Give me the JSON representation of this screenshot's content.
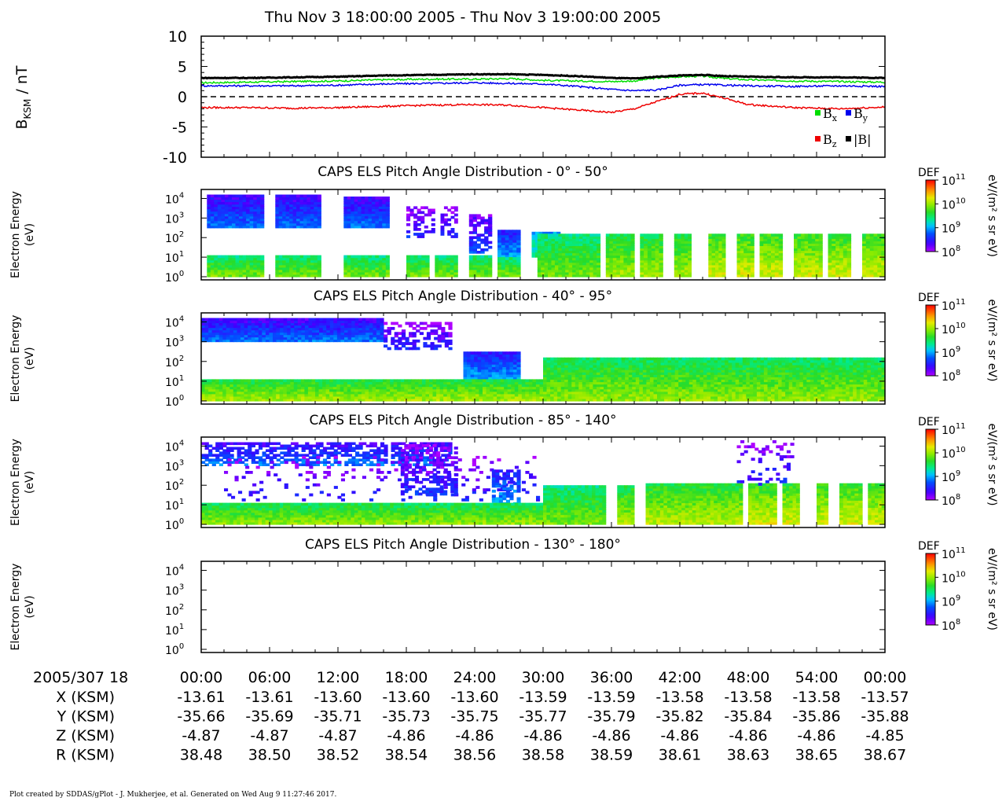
{
  "title": "Thu Nov 3 18:00:00 2005 - Thu Nov 3 19:00:00 2005",
  "footer": "Plot created by SDDAS/gPlot - J. Mukherjee, et al.  Generated on Wed Aug 9 11:27:46 2017.",
  "chart_data": [
    {
      "type": "line",
      "ylabel_main": "B",
      "ylabel_sub": "KSM",
      "ylabel_unit": " / nT",
      "ylim": [
        -10,
        10
      ],
      "yticks": [
        10,
        5,
        0,
        -5,
        -10
      ],
      "zero_line": "dashed",
      "x_minutes": [
        0,
        4,
        8,
        12,
        16,
        20,
        24,
        27,
        30,
        33,
        36,
        38,
        40,
        42,
        44,
        46,
        48,
        52,
        56,
        60
      ],
      "series": [
        {
          "name": "Bx",
          "color": "#00dd00",
          "values": [
            2.3,
            2.4,
            2.5,
            2.6,
            2.8,
            2.9,
            2.9,
            3.0,
            2.7,
            2.6,
            2.5,
            2.6,
            3.1,
            3.3,
            3.4,
            3.0,
            2.8,
            2.6,
            2.5,
            2.4
          ]
        },
        {
          "name": "By",
          "color": "#0000ee",
          "values": [
            1.8,
            1.8,
            1.8,
            1.9,
            2.1,
            2.2,
            2.3,
            2.2,
            2.1,
            1.7,
            1.2,
            1.0,
            1.1,
            1.9,
            2.0,
            1.9,
            1.8,
            1.7,
            1.8,
            1.7
          ]
        },
        {
          "name": "Bz",
          "color": "#ee0000",
          "values": [
            -1.8,
            -1.8,
            -1.9,
            -1.8,
            -1.6,
            -1.4,
            -1.3,
            -1.4,
            -1.8,
            -2.2,
            -2.6,
            -2.0,
            -0.8,
            0.4,
            0.6,
            -0.3,
            -1.3,
            -1.8,
            -2.0,
            -1.7
          ]
        },
        {
          "name": "|B|",
          "color": "#000000",
          "values": [
            3.1,
            3.1,
            3.2,
            3.3,
            3.5,
            3.6,
            3.7,
            3.7,
            3.6,
            3.4,
            3.1,
            3.0,
            3.3,
            3.5,
            3.6,
            3.4,
            3.3,
            3.2,
            3.2,
            3.1
          ]
        }
      ],
      "legend": [
        {
          "color": "#00dd00",
          "label": "B",
          "sub": "x"
        },
        {
          "color": "#0000ee",
          "label": "B",
          "sub": "y"
        },
        {
          "color": "#ee0000",
          "label": "B",
          "sub": "z"
        },
        {
          "color": "#000000",
          "label": "|B|",
          "sub": ""
        }
      ]
    },
    {
      "type": "heatmap",
      "title": "CAPS ELS Pitch Angle Distribution - 0° - 50°",
      "ylabel": "Electron Energy",
      "yunit": "(eV)",
      "yticks": [
        "10",
        "10",
        "10",
        "10",
        "10"
      ],
      "ytick_exponents": [
        "4",
        "3",
        "2",
        "1",
        "0"
      ],
      "colorbar": {
        "label": "DEF",
        "unit": "eV/(m² s sr eV)",
        "ticks_base": "10",
        "ticks_exp": [
          "11",
          "10",
          "9",
          "8"
        ]
      },
      "blocks": [
        {
          "t0": 0.5,
          "t1": 5.5,
          "e_lo": 2.5,
          "e_hi": 4.2,
          "lvl": 0.1
        },
        {
          "t0": 6.5,
          "t1": 10.5,
          "e_lo": 2.5,
          "e_hi": 4.2,
          "lvl": 0.1
        },
        {
          "t0": 12.5,
          "t1": 16.5,
          "e_lo": 2.5,
          "e_hi": 4.1,
          "lvl": 0.1
        },
        {
          "t0": 18.0,
          "t1": 20.5,
          "e_lo": 2.0,
          "e_hi": 3.6,
          "lvl": 0.0,
          "sparse": 0.5
        },
        {
          "t0": 21.0,
          "t1": 22.5,
          "e_lo": 2.0,
          "e_hi": 3.6,
          "lvl": 0.0,
          "sparse": 0.5
        },
        {
          "t0": 23.5,
          "t1": 25.5,
          "e_lo": 1.2,
          "e_hi": 3.2,
          "lvl": 0.05,
          "sparse": 0.7
        },
        {
          "t0": 26.0,
          "t1": 28.0,
          "e_lo": 1.0,
          "e_hi": 2.4,
          "lvl": 0.15
        },
        {
          "t0": 29.0,
          "t1": 31.5,
          "e_lo": 1.0,
          "e_hi": 2.3,
          "lvl": 0.3
        },
        {
          "t0": 0.5,
          "t1": 5.5,
          "e_lo": 0.0,
          "e_hi": 1.1,
          "lvl": 0.45
        },
        {
          "t0": 6.5,
          "t1": 10.5,
          "e_lo": 0.0,
          "e_hi": 1.1,
          "lvl": 0.45
        },
        {
          "t0": 12.5,
          "t1": 16.5,
          "e_lo": 0.0,
          "e_hi": 1.1,
          "lvl": 0.45
        },
        {
          "t0": 18.0,
          "t1": 20.0,
          "e_lo": 0.0,
          "e_hi": 1.1,
          "lvl": 0.45
        },
        {
          "t0": 20.5,
          "t1": 22.5,
          "e_lo": 0.0,
          "e_hi": 1.1,
          "lvl": 0.45
        },
        {
          "t0": 23.5,
          "t1": 25.5,
          "e_lo": 0.0,
          "e_hi": 1.1,
          "lvl": 0.45
        },
        {
          "t0": 26.0,
          "t1": 28.0,
          "e_lo": 0.0,
          "e_hi": 1.0,
          "lvl": 0.45
        },
        {
          "t0": 29.5,
          "t1": 35.0,
          "e_lo": 0.0,
          "e_hi": 2.2,
          "lvl": 0.45
        },
        {
          "t0": 35.5,
          "t1": 38.0,
          "e_lo": 0.0,
          "e_hi": 2.2,
          "lvl": 0.5
        },
        {
          "t0": 38.5,
          "t1": 40.5,
          "e_lo": 0.0,
          "e_hi": 2.2,
          "lvl": 0.5
        },
        {
          "t0": 41.5,
          "t1": 43.0,
          "e_lo": 0.0,
          "e_hi": 2.2,
          "lvl": 0.5
        },
        {
          "t0": 44.5,
          "t1": 46.0,
          "e_lo": 0.0,
          "e_hi": 2.2,
          "lvl": 0.55
        },
        {
          "t0": 47.0,
          "t1": 48.5,
          "e_lo": 0.0,
          "e_hi": 2.2,
          "lvl": 0.55
        },
        {
          "t0": 49.0,
          "t1": 51.0,
          "e_lo": 0.0,
          "e_hi": 2.2,
          "lvl": 0.55
        },
        {
          "t0": 52.0,
          "t1": 54.5,
          "e_lo": 0.0,
          "e_hi": 2.2,
          "lvl": 0.55
        },
        {
          "t0": 55.0,
          "t1": 57.0,
          "e_lo": 0.0,
          "e_hi": 2.2,
          "lvl": 0.55
        },
        {
          "t0": 58.0,
          "t1": 60.0,
          "e_lo": 0.0,
          "e_hi": 2.2,
          "lvl": 0.55
        }
      ]
    },
    {
      "type": "heatmap",
      "title": "CAPS ELS Pitch Angle Distribution - 40° - 95°",
      "ylabel": "Electron Energy",
      "yunit": "(eV)",
      "yticks": [
        "10",
        "10",
        "10",
        "10",
        "10"
      ],
      "ytick_exponents": [
        "4",
        "3",
        "2",
        "1",
        "0"
      ],
      "colorbar": {
        "label": "DEF",
        "unit": "eV/(m² s sr eV)",
        "ticks_base": "10",
        "ticks_exp": [
          "11",
          "10",
          "9",
          "8"
        ]
      },
      "blocks": [
        {
          "t0": 0.0,
          "t1": 16.0,
          "e_lo": 3.0,
          "e_hi": 4.2,
          "lvl": 0.1
        },
        {
          "t0": 16.0,
          "t1": 22.0,
          "e_lo": 2.6,
          "e_hi": 4.0,
          "lvl": 0.0,
          "sparse": 0.55
        },
        {
          "t0": 23.0,
          "t1": 28.0,
          "e_lo": 1.1,
          "e_hi": 2.5,
          "lvl": 0.15
        },
        {
          "t0": 0.0,
          "t1": 30.0,
          "e_lo": 0.0,
          "e_hi": 1.1,
          "lvl": 0.5
        },
        {
          "t0": 30.0,
          "t1": 60.0,
          "e_lo": 0.0,
          "e_hi": 2.2,
          "lvl": 0.48
        }
      ]
    },
    {
      "type": "heatmap",
      "title": "CAPS ELS Pitch Angle Distribution - 85° - 140°",
      "ylabel": "Electron Energy",
      "yunit": "(eV)",
      "yticks": [
        "10",
        "10",
        "10",
        "10",
        "10"
      ],
      "ytick_exponents": [
        "4",
        "3",
        "2",
        "1",
        "0"
      ],
      "colorbar": {
        "label": "DEF",
        "unit": "eV/(m² s sr eV)",
        "ticks_base": "10",
        "ticks_exp": [
          "11",
          "10",
          "9",
          "8"
        ]
      },
      "blocks": [
        {
          "t0": 0.0,
          "t1": 22.0,
          "e_lo": 3.0,
          "e_hi": 4.2,
          "lvl": 0.1,
          "sparse": 0.65
        },
        {
          "t0": 2.0,
          "t1": 30.0,
          "e_lo": 1.2,
          "e_hi": 3.5,
          "lvl": 0.0,
          "sparse": 0.12
        },
        {
          "t0": 17.5,
          "t1": 22.5,
          "e_lo": 1.5,
          "e_hi": 4.1,
          "lvl": 0.02,
          "sparse": 0.45
        },
        {
          "t0": 25.5,
          "t1": 28.0,
          "e_lo": 1.0,
          "e_hi": 2.8,
          "lvl": 0.15,
          "sparse": 0.6
        },
        {
          "t0": 0.0,
          "t1": 30.0,
          "e_lo": 0.0,
          "e_hi": 1.1,
          "lvl": 0.48
        },
        {
          "t0": 30.0,
          "t1": 35.5,
          "e_lo": 0.0,
          "e_hi": 2.0,
          "lvl": 0.45
        },
        {
          "t0": 36.5,
          "t1": 38.0,
          "e_lo": 0.0,
          "e_hi": 2.0,
          "lvl": 0.5
        },
        {
          "t0": 39.0,
          "t1": 47.5,
          "e_lo": 0.0,
          "e_hi": 2.1,
          "lvl": 0.52
        },
        {
          "t0": 48.0,
          "t1": 50.5,
          "e_lo": 0.0,
          "e_hi": 2.1,
          "lvl": 0.55
        },
        {
          "t0": 51.0,
          "t1": 52.5,
          "e_lo": 0.0,
          "e_hi": 2.1,
          "lvl": 0.55
        },
        {
          "t0": 54.0,
          "t1": 55.0,
          "e_lo": 0.0,
          "e_hi": 2.1,
          "lvl": 0.55
        },
        {
          "t0": 56.0,
          "t1": 58.0,
          "e_lo": 0.0,
          "e_hi": 2.1,
          "lvl": 0.55
        },
        {
          "t0": 58.5,
          "t1": 60.0,
          "e_lo": 0.0,
          "e_hi": 2.1,
          "lvl": 0.55
        },
        {
          "t0": 47.0,
          "t1": 52.0,
          "e_lo": 2.0,
          "e_hi": 4.3,
          "lvl": 0.0,
          "sparse": 0.18
        }
      ]
    },
    {
      "type": "heatmap",
      "title": "CAPS ELS Pitch Angle Distribution - 130° - 180°",
      "ylabel": "Electron Energy",
      "yunit": "(eV)",
      "yticks": [
        "10",
        "10",
        "10",
        "10",
        "10"
      ],
      "ytick_exponents": [
        "4",
        "3",
        "2",
        "1",
        "0"
      ],
      "colorbar": {
        "label": "DEF",
        "unit": "eV/(m² s sr eV)",
        "ticks_base": "10",
        "ticks_exp": [
          "11",
          "10",
          "9",
          "8"
        ]
      },
      "blocks": []
    }
  ],
  "time_axis": {
    "label": "2005/307 18",
    "ticks": [
      "00:00",
      "06:00",
      "12:00",
      "18:00",
      "24:00",
      "30:00",
      "36:00",
      "42:00",
      "48:00",
      "54:00",
      "00:00"
    ]
  },
  "ephemeris": [
    {
      "label": "X (KSM)",
      "values": [
        "-13.61",
        "-13.61",
        "-13.60",
        "-13.60",
        "-13.60",
        "-13.59",
        "-13.59",
        "-13.58",
        "-13.58",
        "-13.58",
        "-13.57"
      ]
    },
    {
      "label": "Y (KSM)",
      "values": [
        "-35.66",
        "-35.69",
        "-35.71",
        "-35.73",
        "-35.75",
        "-35.77",
        "-35.79",
        "-35.82",
        "-35.84",
        "-35.86",
        "-35.88"
      ]
    },
    {
      "label": "Z (KSM)",
      "values": [
        "-4.87",
        "-4.87",
        "-4.87",
        "-4.86",
        "-4.86",
        "-4.86",
        "-4.86",
        "-4.86",
        "-4.86",
        "-4.86",
        "-4.85"
      ]
    },
    {
      "label": "R (KSM)",
      "values": [
        "38.48",
        "38.50",
        "38.52",
        "38.54",
        "38.56",
        "38.58",
        "38.59",
        "38.61",
        "38.63",
        "38.65",
        "38.67"
      ]
    }
  ]
}
